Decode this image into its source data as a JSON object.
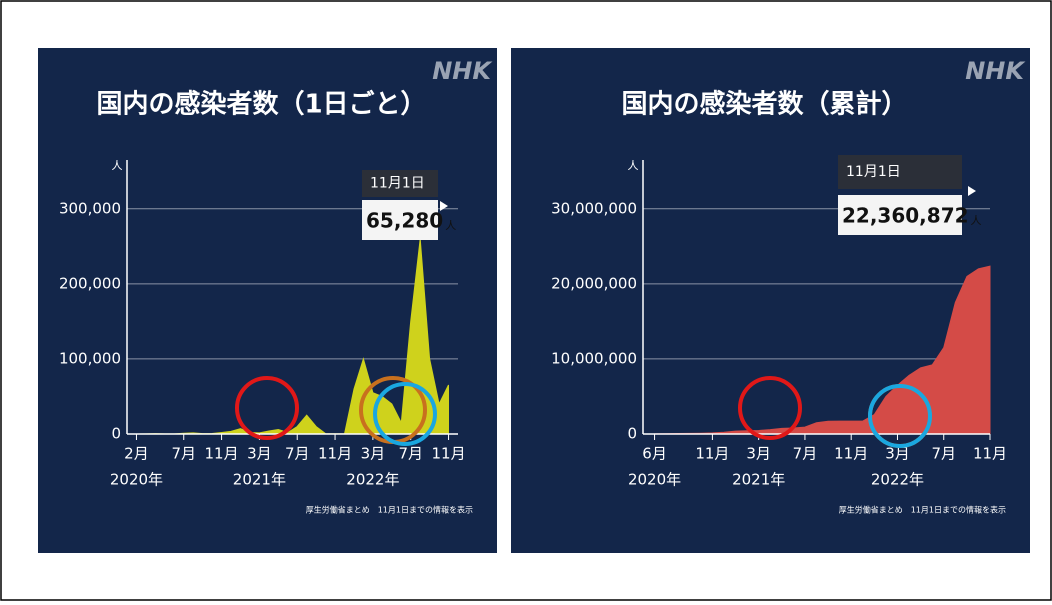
{
  "chart_data": [
    {
      "type": "area",
      "title": "国内の感染者数（1日ごと）",
      "brand": "NHK",
      "y_unit": "人",
      "color": "#cfd21c",
      "x": [
        "2020-01",
        "2020-02",
        "2020-03",
        "2020-04",
        "2020-05",
        "2020-06",
        "2020-07",
        "2020-08",
        "2020-09",
        "2020-10",
        "2020-11",
        "2020-12",
        "2021-01",
        "2021-02",
        "2021-03",
        "2021-04",
        "2021-05",
        "2021-06",
        "2021-07",
        "2021-08",
        "2021-09",
        "2021-10",
        "2021-11",
        "2021-12",
        "2022-01",
        "2022-02",
        "2022-03",
        "2022-04",
        "2022-05",
        "2022-06",
        "2022-07",
        "2022-08",
        "2022-09",
        "2022-10",
        "2022-11"
      ],
      "values": [
        0,
        0,
        100,
        500,
        100,
        100,
        1000,
        1500,
        500,
        700,
        2000,
        3500,
        7000,
        2000,
        1500,
        4000,
        6000,
        2000,
        10000,
        25000,
        10000,
        500,
        200,
        300,
        60000,
        100000,
        55000,
        50000,
        40000,
        15000,
        150000,
        260000,
        100000,
        40000,
        65280
      ],
      "xlim": [
        "2020-01",
        "2022-12"
      ],
      "xticks": [
        {
          "value": "2020-02",
          "label": "2月"
        },
        {
          "value": "2020-07",
          "label": "7月"
        },
        {
          "value": "2020-11",
          "label": "11月"
        },
        {
          "value": "2021-03",
          "label": "3月"
        },
        {
          "value": "2021-07",
          "label": "7月"
        },
        {
          "value": "2021-11",
          "label": "11月"
        },
        {
          "value": "2022-03",
          "label": "3月"
        },
        {
          "value": "2022-07",
          "label": "7月"
        },
        {
          "value": "2022-11",
          "label": "11月"
        }
      ],
      "year_labels": [
        {
          "value": "2020-02",
          "label": "2020年"
        },
        {
          "value": "2021-03",
          "label": "2021年"
        },
        {
          "value": "2022-03",
          "label": "2022年"
        }
      ],
      "ylim": [
        0,
        365000
      ],
      "yticks": [
        0,
        {
          "value": 100000,
          "label": "100,000"
        },
        {
          "value": 200000,
          "label": "200,000"
        },
        {
          "value": 300000,
          "label": "300,000"
        }
      ],
      "grid": true,
      "annotation": {
        "date": "11月1日",
        "value": 65280,
        "value_label": "65,280",
        "unit": "人"
      },
      "source": "厚生労働省まとめ　11月1日までの情報を表示"
    },
    {
      "type": "area",
      "title": "国内の感染者数（累計）",
      "brand": "NHK",
      "y_unit": "人",
      "color": "#d44b47",
      "x": [
        "2020-06",
        "2020-07",
        "2020-08",
        "2020-09",
        "2020-10",
        "2020-11",
        "2020-12",
        "2021-01",
        "2021-02",
        "2021-03",
        "2021-04",
        "2021-05",
        "2021-06",
        "2021-07",
        "2021-08",
        "2021-09",
        "2021-10",
        "2021-11",
        "2021-12",
        "2022-01",
        "2022-02",
        "2022-03",
        "2022-04",
        "2022-05",
        "2022-06",
        "2022-07",
        "2022-08",
        "2022-09",
        "2022-10",
        "2022-11"
      ],
      "values": [
        18000,
        35000,
        70000,
        80000,
        100000,
        150000,
        235000,
        390000,
        430000,
        470000,
        590000,
        750000,
        800000,
        920000,
        1500000,
        1700000,
        1720000,
        1725000,
        1730000,
        2600000,
        5000000,
        6500000,
        7800000,
        8800000,
        9200000,
        11500000,
        17500000,
        21000000,
        22000000,
        22360872
      ],
      "xlim": [
        "2020-05",
        "2022-11"
      ],
      "xticks": [
        {
          "value": "2020-06",
          "label": "6月"
        },
        {
          "value": "2020-11",
          "label": "11月"
        },
        {
          "value": "2021-03",
          "label": "3月"
        },
        {
          "value": "2021-07",
          "label": "7月"
        },
        {
          "value": "2021-11",
          "label": "11月"
        },
        {
          "value": "2022-03",
          "label": "3月"
        },
        {
          "value": "2022-07",
          "label": "7月"
        },
        {
          "value": "2022-11",
          "label": "11月"
        }
      ],
      "year_labels": [
        {
          "value": "2020-06",
          "label": "2020年"
        },
        {
          "value": "2021-03",
          "label": "2021年"
        },
        {
          "value": "2022-03",
          "label": "2022年"
        }
      ],
      "ylim": [
        0,
        36500000
      ],
      "yticks": [
        0,
        {
          "value": 10000000,
          "label": "10,000,000"
        },
        {
          "value": 20000000,
          "label": "20,000,000"
        },
        {
          "value": 30000000,
          "label": "30,000,000"
        }
      ],
      "grid": true,
      "annotation": {
        "date": "11月1日",
        "value": 22360872,
        "value_label": "22,360,872",
        "unit": "人"
      },
      "source": "厚生労働省まとめ　11月1日までの情報を表示"
    }
  ]
}
